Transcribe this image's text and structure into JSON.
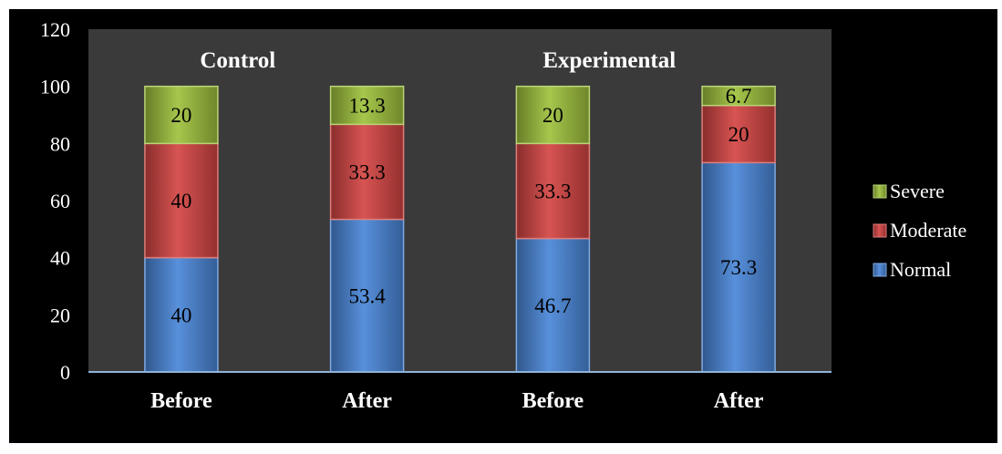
{
  "chart_data": {
    "type": "bar",
    "stacked": true,
    "categories": [
      "Before",
      "After",
      "Before",
      "After"
    ],
    "group_labels": [
      "Control",
      "Experimental"
    ],
    "series": [
      {
        "name": "Normal",
        "values": [
          40,
          53.4,
          46.7,
          73.3
        ],
        "color": "#4a86d8",
        "data_labels": [
          "40",
          "53.4",
          "46.7",
          "73.3"
        ]
      },
      {
        "name": "Moderate",
        "values": [
          40,
          33.3,
          33.3,
          20
        ],
        "color": "#d34543",
        "data_labels": [
          "40",
          "33.3",
          "33.3",
          "20"
        ]
      },
      {
        "name": "Severe",
        "values": [
          20,
          13.3,
          20,
          6.7
        ],
        "color": "#9ec13c",
        "data_labels": [
          "20",
          "13.3",
          "20",
          "6.7"
        ]
      }
    ],
    "legend_order": [
      "Severe",
      "Moderate",
      "Normal"
    ],
    "ylim": [
      0,
      120
    ],
    "yticks": [
      0,
      20,
      40,
      60,
      80,
      100,
      120
    ],
    "grid": false,
    "legend_position": "right",
    "colors": {
      "background": "#000000",
      "plot_area": "#3a3a3a",
      "text": "#ffffff",
      "axis": "#8fb3d9"
    }
  }
}
